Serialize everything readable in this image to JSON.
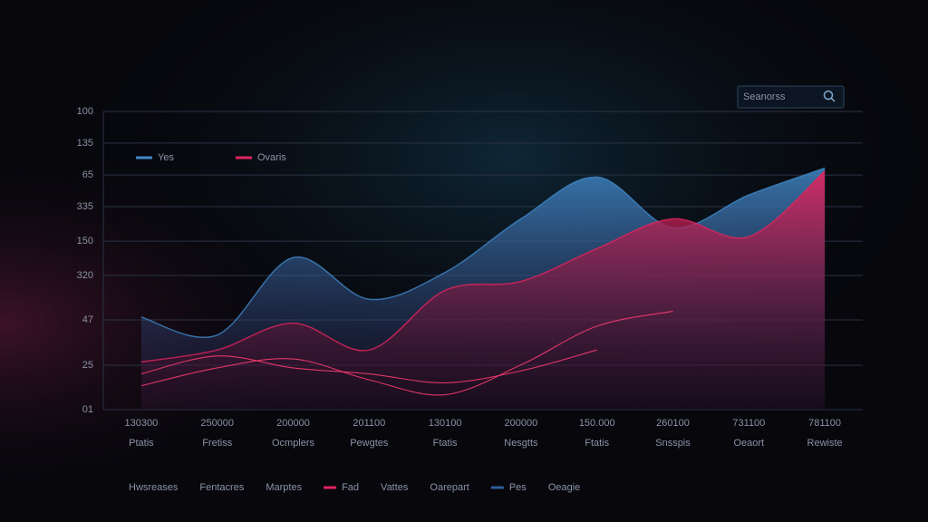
{
  "chart_data": {
    "type": "area",
    "search_placeholder": "Seanorss",
    "ylim": [
      0,
      100
    ],
    "yticks": [
      {
        "value": 0,
        "label": "01"
      },
      {
        "value": 14.9,
        "label": "25"
      },
      {
        "value": 30.1,
        "label": "47"
      },
      {
        "value": 45,
        "label": "320"
      },
      {
        "value": 56.5,
        "label": "150"
      },
      {
        "value": 68.1,
        "label": "335"
      },
      {
        "value": 78.7,
        "label": "65"
      },
      {
        "value": 89.4,
        "label": "135"
      },
      100
    ],
    "grid": true,
    "categories": [
      "Ptatis",
      "Fretiss",
      "Ocmplers",
      "Pewgtes",
      "Ftatis",
      "Nesgtts",
      "Ftatis",
      "Snsspis",
      "Oeaort",
      "Rewiste"
    ],
    "category_codes": [
      "130300",
      "250000",
      "200000",
      "201100",
      "130100",
      "200000",
      "150.000",
      "260100",
      "731100",
      "781100"
    ],
    "legend": "top-left",
    "series": [
      {
        "name": "Yes",
        "color": "#3f86c4",
        "values": [
          31,
          25,
          51,
          37,
          46,
          64,
          78,
          61,
          72,
          81
        ]
      },
      {
        "name": "Ovaris",
        "color": "#e0245e",
        "values": [
          16,
          20,
          29,
          20,
          40,
          43,
          54,
          64,
          58,
          80
        ]
      },
      {
        "color": "#ff3d72",
        "values": [
          8,
          14,
          17,
          10,
          5,
          15,
          28,
          33,
          null,
          null
        ]
      },
      {
        "color": "#ff3d72",
        "values": [
          12,
          18,
          14,
          12,
          9,
          13,
          20,
          null,
          null,
          null
        ]
      }
    ],
    "footer_legend": [
      {
        "label": "Hwsreases"
      },
      {
        "label": "Fentacres"
      },
      {
        "label": "Marptes"
      },
      {
        "label": "Fad",
        "color": "#e0245e"
      },
      {
        "label": "Vattes"
      },
      {
        "label": "Oarepart"
      },
      {
        "label": "Pes",
        "color": "#2f5f9a"
      },
      {
        "label": "Oeagie"
      }
    ]
  }
}
